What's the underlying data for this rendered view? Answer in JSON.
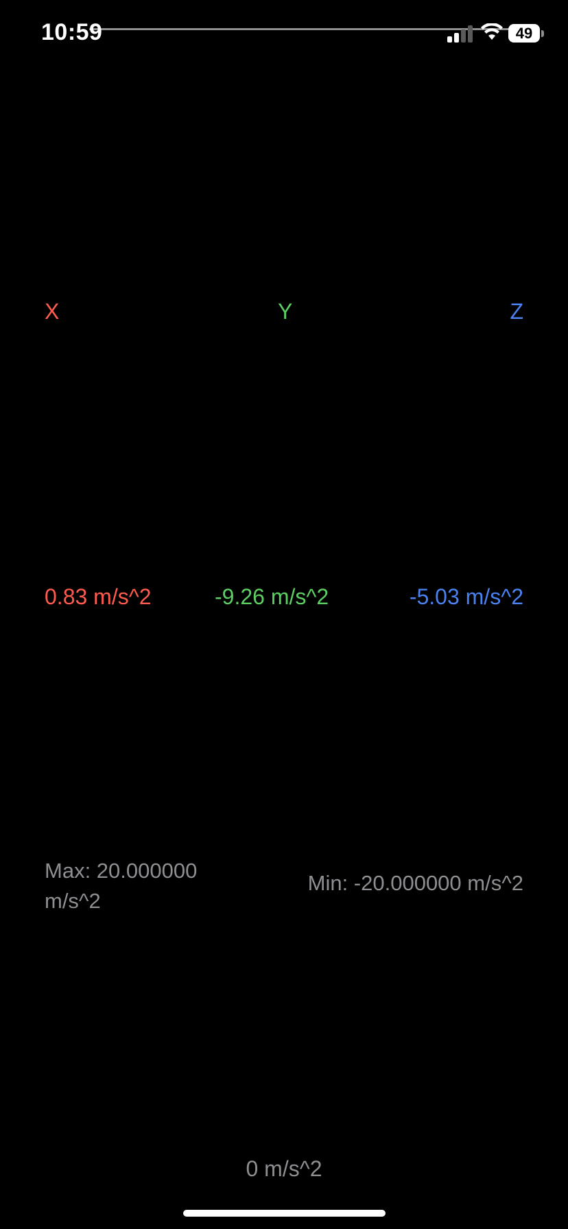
{
  "status_bar": {
    "time": "10:59",
    "battery": "49",
    "icons": [
      "signal-icon",
      "wifi-icon",
      "battery-icon"
    ]
  },
  "axes": [
    {
      "label": "X",
      "color": "#ff5b4e"
    },
    {
      "label": "Y",
      "color": "#5ccf63"
    },
    {
      "label": "Z",
      "color": "#4a82f2"
    }
  ],
  "readings": [
    {
      "text": "0.83 m/s^2",
      "color": "#ff5b4e"
    },
    {
      "text": "-9.26 m/s^2",
      "color": "#5ccf63"
    },
    {
      "text": "-5.03 m/s^2",
      "color": "#4a82f2"
    }
  ],
  "range": {
    "max": "Max: 20.000000 m/s^2",
    "min": "Min: -20.000000 m/s^2"
  },
  "zero_label": "0 m/s^2",
  "colors": {
    "background": "#000000",
    "secondary_text": "#8e8e93"
  }
}
